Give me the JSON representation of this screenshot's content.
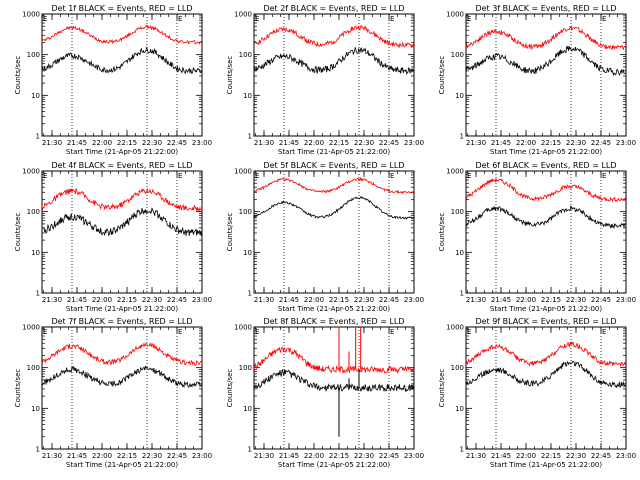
{
  "chart_data": [
    {
      "type": "line",
      "title": "Det 1f BLACK = Events, RED = LLD",
      "xlabel": "Start Time (21-Apr-05 21:22:00)",
      "ylabel": "Counts/sec",
      "x_ticks": [
        "21:30",
        "21:45",
        "22:00",
        "22:15",
        "22:30",
        "22:45",
        "23:00"
      ],
      "y_ticks": [
        "1",
        "10",
        "100",
        "1000"
      ],
      "ylim": [
        1,
        1000
      ],
      "yscale": "log",
      "xlim_minutes": [
        21.37,
        23.0
      ],
      "markers": {
        "E_start": "21:24",
        "E_end": "22:45",
        "dotted_lines": [
          "21:42",
          "22:27",
          "22:45"
        ]
      },
      "series": [
        {
          "name": "RED",
          "color": "#ff0000",
          "base": 200,
          "peaks": [
            {
              "t": "21:42",
              "v": 460
            },
            {
              "t": "22:27",
              "v": 480
            }
          ],
          "noise": 0.04,
          "x": [
            "21:24",
            "21:42",
            "22:05",
            "22:27",
            "22:45",
            "23:00"
          ],
          "values": [
            170,
            460,
            200,
            480,
            200,
            200
          ]
        },
        {
          "name": "BLACK",
          "color": "#000000",
          "base": 40,
          "peaks": [
            {
              "t": "21:42",
              "v": 95
            },
            {
              "t": "22:27",
              "v": 130
            }
          ],
          "noise": 0.07,
          "x": [
            "21:24",
            "21:42",
            "22:05",
            "22:27",
            "22:45",
            "23:00"
          ],
          "values": [
            38,
            95,
            40,
            130,
            38,
            37
          ]
        }
      ]
    },
    {
      "type": "line",
      "title": "Det 2f BLACK = Events, RED = LLD",
      "xlabel": "Start Time (21-Apr-05 21:22:00)",
      "ylabel": "Counts/sec",
      "x_ticks": [
        "21:30",
        "21:45",
        "22:00",
        "22:15",
        "22:30",
        "22:45",
        "23:00"
      ],
      "y_ticks": [
        "1",
        "10",
        "100",
        "1000"
      ],
      "ylim": [
        1,
        1000
      ],
      "yscale": "log",
      "markers": {
        "E_start": "21:24",
        "E_end": "22:45",
        "dotted_lines": [
          "21:42",
          "22:27",
          "22:45"
        ]
      },
      "series": [
        {
          "name": "RED",
          "color": "#ff0000",
          "base": 170,
          "peaks": [
            {
              "t": "21:42",
              "v": 420
            },
            {
              "t": "22:27",
              "v": 470
            }
          ],
          "noise": 0.06,
          "x": [
            "21:24",
            "21:42",
            "22:05",
            "22:27",
            "22:45",
            "23:00"
          ],
          "values": [
            170,
            420,
            190,
            470,
            160,
            160
          ]
        },
        {
          "name": "BLACK",
          "color": "#000000",
          "base": 40,
          "peaks": [
            {
              "t": "21:42",
              "v": 90
            },
            {
              "t": "22:27",
              "v": 130
            }
          ],
          "noise": 0.08,
          "x": [
            "21:24",
            "21:42",
            "22:05",
            "22:27",
            "22:45",
            "23:00"
          ],
          "values": [
            40,
            90,
            42,
            130,
            40,
            40
          ]
        }
      ]
    },
    {
      "type": "line",
      "title": "Det 3f BLACK = Events, RED = LLD",
      "xlabel": "Start Time (21-Apr-05 21:22:00)",
      "ylabel": "Counts/sec",
      "x_ticks": [
        "21:30",
        "21:45",
        "22:00",
        "22:15",
        "22:30",
        "22:45",
        "23:00"
      ],
      "y_ticks": [
        "1",
        "10",
        "100",
        "1000"
      ],
      "ylim": [
        1,
        1000
      ],
      "yscale": "log",
      "markers": {
        "E_start": "21:24",
        "E_end": "22:45",
        "dotted_lines": [
          "21:42",
          "22:27",
          "22:45"
        ]
      },
      "series": [
        {
          "name": "RED",
          "color": "#ff0000",
          "base": 150,
          "peaks": [
            {
              "t": "21:42",
              "v": 370
            },
            {
              "t": "22:27",
              "v": 450
            }
          ],
          "noise": 0.06,
          "x": [
            "21:24",
            "21:42",
            "22:05",
            "22:27",
            "22:45",
            "23:00"
          ],
          "values": [
            150,
            370,
            170,
            450,
            140,
            140
          ]
        },
        {
          "name": "BLACK",
          "color": "#000000",
          "base": 38,
          "peaks": [
            {
              "t": "21:42",
              "v": 90
            },
            {
              "t": "22:27",
              "v": 140
            }
          ],
          "noise": 0.08,
          "x": [
            "21:24",
            "21:42",
            "22:05",
            "22:27",
            "22:45",
            "23:00"
          ],
          "values": [
            36,
            90,
            38,
            140,
            38,
            36
          ]
        }
      ]
    },
    {
      "type": "line",
      "title": "Det 4f BLACK = Events, RED = LLD",
      "xlabel": "Start Time (21-Apr-05 21:22:00)",
      "ylabel": "Counts/sec",
      "x_ticks": [
        "21:30",
        "21:45",
        "22:00",
        "22:15",
        "22:30",
        "22:45",
        "23:00"
      ],
      "y_ticks": [
        "1",
        "10",
        "100",
        "1000"
      ],
      "ylim": [
        1,
        1000
      ],
      "yscale": "log",
      "markers": {
        "E_start": "21:24",
        "E_end": "22:45",
        "dotted_lines": [
          "21:42",
          "22:27",
          "22:45"
        ]
      },
      "series": [
        {
          "name": "RED",
          "color": "#ff0000",
          "base": 120,
          "peaks": [
            {
              "t": "21:42",
              "v": 320
            },
            {
              "t": "22:27",
              "v": 330
            }
          ],
          "noise": 0.07,
          "x": [
            "21:24",
            "21:42",
            "22:05",
            "22:27",
            "22:45",
            "23:00"
          ],
          "values": [
            110,
            320,
            130,
            330,
            120,
            120
          ]
        },
        {
          "name": "BLACK",
          "color": "#000000",
          "base": 30,
          "peaks": [
            {
              "t": "21:42",
              "v": 75
            },
            {
              "t": "22:27",
              "v": 110
            }
          ],
          "noise": 0.09,
          "x": [
            "21:24",
            "21:42",
            "22:05",
            "22:27",
            "22:45",
            "23:00"
          ],
          "values": [
            30,
            75,
            30,
            110,
            32,
            30
          ]
        }
      ]
    },
    {
      "type": "line",
      "title": "Det 5f BLACK = Events, RED = LLD",
      "xlabel": "Start Time (21-Apr-05 21:22:00)",
      "ylabel": "Counts/sec",
      "x_ticks": [
        "21:30",
        "21:45",
        "22:00",
        "22:15",
        "22:30",
        "22:45",
        "23:00"
      ],
      "y_ticks": [
        "1",
        "10",
        "100",
        "1000"
      ],
      "ylim": [
        1,
        1000
      ],
      "yscale": "log",
      "markers": {
        "E_start": "21:24",
        "E_end": "22:45",
        "dotted_lines": [
          "21:42",
          "22:27",
          "22:45"
        ]
      },
      "series": [
        {
          "name": "RED",
          "color": "#ff0000",
          "base": 300,
          "peaks": [
            {
              "t": "21:42",
              "v": 620
            },
            {
              "t": "22:27",
              "v": 630
            }
          ],
          "noise": 0.03,
          "x": [
            "21:24",
            "21:42",
            "22:05",
            "22:27",
            "22:45",
            "23:00"
          ],
          "values": [
            300,
            620,
            310,
            630,
            300,
            300
          ]
        },
        {
          "name": "BLACK",
          "color": "#000000",
          "base": 70,
          "peaks": [
            {
              "t": "21:42",
              "v": 170
            },
            {
              "t": "22:27",
              "v": 220
            }
          ],
          "noise": 0.03,
          "x": [
            "21:24",
            "21:42",
            "22:05",
            "22:27",
            "22:45",
            "23:00"
          ],
          "values": [
            70,
            170,
            75,
            220,
            70,
            70
          ]
        }
      ]
    },
    {
      "type": "line",
      "title": "Det 6f BLACK = Events, RED = LLD",
      "xlabel": "Start Time (21-Apr-05 21:22:00)",
      "ylabel": "Counts/sec",
      "x_ticks": [
        "21:30",
        "21:45",
        "22:00",
        "22:15",
        "22:30",
        "22:45",
        "23:00"
      ],
      "y_ticks": [
        "1",
        "10",
        "100",
        "1000"
      ],
      "ylim": [
        1,
        1000
      ],
      "yscale": "log",
      "markers": {
        "E_start": "21:24",
        "E_end": "22:45",
        "dotted_lines": [
          "21:42",
          "22:27",
          "22:45"
        ]
      },
      "series": [
        {
          "name": "RED",
          "color": "#ff0000",
          "base": 200,
          "peaks": [
            {
              "t": "21:42",
              "v": 600
            },
            {
              "t": "22:27",
              "v": 420
            }
          ],
          "noise": 0.05,
          "x": [
            "21:24",
            "21:42",
            "22:05",
            "22:27",
            "22:45",
            "23:00"
          ],
          "values": [
            200,
            600,
            230,
            420,
            200,
            200
          ]
        },
        {
          "name": "BLACK",
          "color": "#000000",
          "base": 45,
          "peaks": [
            {
              "t": "21:42",
              "v": 120
            },
            {
              "t": "22:27",
              "v": 120
            }
          ],
          "noise": 0.06,
          "x": [
            "21:24",
            "21:42",
            "22:05",
            "22:27",
            "22:45",
            "23:00"
          ],
          "values": [
            45,
            120,
            50,
            120,
            42,
            40
          ]
        }
      ]
    },
    {
      "type": "line",
      "title": "Det 7f BLACK = Events, RED = LLD",
      "xlabel": "Start Time (21-Apr-05 21:22:00)",
      "ylabel": "Counts/sec",
      "x_ticks": [
        "21:30",
        "21:45",
        "22:00",
        "22:15",
        "22:30",
        "22:45",
        "23:00"
      ],
      "y_ticks": [
        "1",
        "10",
        "100",
        "1000"
      ],
      "ylim": [
        1,
        1000
      ],
      "yscale": "log",
      "markers": {
        "E_start": "21:24",
        "E_end": "22:45",
        "dotted_lines": [
          "21:42",
          "22:27",
          "22:45"
        ]
      },
      "series": [
        {
          "name": "RED",
          "color": "#ff0000",
          "base": 130,
          "peaks": [
            {
              "t": "21:42",
              "v": 340
            },
            {
              "t": "22:27",
              "v": 360
            }
          ],
          "noise": 0.06,
          "x": [
            "21:24",
            "21:42",
            "22:05",
            "22:27",
            "22:45",
            "23:00"
          ],
          "values": [
            130,
            340,
            140,
            360,
            130,
            130
          ]
        },
        {
          "name": "BLACK",
          "color": "#000000",
          "base": 38,
          "peaks": [
            {
              "t": "21:42",
              "v": 90
            },
            {
              "t": "22:27",
              "v": 95
            }
          ],
          "noise": 0.07,
          "x": [
            "21:24",
            "21:42",
            "22:05",
            "22:27",
            "22:45",
            "23:00"
          ],
          "values": [
            38,
            90,
            40,
            95,
            38,
            36
          ]
        }
      ]
    },
    {
      "type": "line",
      "title": "Det 8f BLACK = Events, RED = LLD",
      "xlabel": "Start Time (21-Apr-05 21:22:00)",
      "ylabel": "Counts/sec",
      "x_ticks": [
        "21:30",
        "21:45",
        "22:00",
        "22:15",
        "22:30",
        "22:45",
        "23:00"
      ],
      "y_ticks": [
        "1",
        "10",
        "100",
        "1000"
      ],
      "ylim": [
        1,
        1000
      ],
      "yscale": "log",
      "markers": {
        "E_start": "21:24",
        "E_end": "22:45",
        "dotted_lines": [
          "21:42",
          "22:27",
          "22:45"
        ]
      },
      "series": [
        {
          "name": "RED",
          "color": "#ff0000",
          "base": 90,
          "peaks": [
            {
              "t": "21:42",
              "v": 290
            }
          ],
          "noise": 0.08,
          "spikes": [
            {
              "t": "22:15",
              "v": 1000
            },
            {
              "t": "22:21",
              "v": 250
            },
            {
              "t": "22:25",
              "v": 1000
            },
            {
              "t": "22:28",
              "v": 1000
            }
          ],
          "x": [
            "21:24",
            "21:42",
            "22:05",
            "22:15",
            "22:25",
            "22:45",
            "23:00"
          ],
          "values": [
            90,
            290,
            110,
            1000,
            1000,
            90,
            85
          ]
        },
        {
          "name": "BLACK",
          "color": "#000000",
          "base": 32,
          "peaks": [
            {
              "t": "21:42",
              "v": 75
            }
          ],
          "noise": 0.09,
          "spikes": [
            {
              "t": "22:15",
              "v": 2
            },
            {
              "t": "22:21",
              "v": 55
            },
            {
              "t": "22:27",
              "v": 90
            }
          ],
          "x": [
            "21:24",
            "21:42",
            "22:05",
            "22:15",
            "22:27",
            "22:45",
            "23:00"
          ],
          "values": [
            32,
            75,
            34,
            2,
            90,
            32,
            30
          ]
        }
      ]
    },
    {
      "type": "line",
      "title": "Det 9f BLACK = Events, RED = LLD",
      "xlabel": "Start Time (21-Apr-05 21:22:00)",
      "ylabel": "Counts/sec",
      "x_ticks": [
        "21:30",
        "21:45",
        "22:00",
        "22:15",
        "22:30",
        "22:45",
        "23:00"
      ],
      "y_ticks": [
        "1",
        "10",
        "100",
        "1000"
      ],
      "ylim": [
        1,
        1000
      ],
      "yscale": "log",
      "markers": {
        "E_start": "21:24",
        "E_end": "22:45",
        "dotted_lines": [
          "21:42",
          "22:27",
          "22:45"
        ]
      },
      "series": [
        {
          "name": "RED",
          "color": "#ff0000",
          "base": 120,
          "peaks": [
            {
              "t": "21:42",
              "v": 330
            },
            {
              "t": "22:27",
              "v": 380
            }
          ],
          "noise": 0.06,
          "x": [
            "21:24",
            "21:42",
            "22:05",
            "22:27",
            "22:45",
            "23:00"
          ],
          "values": [
            120,
            330,
            130,
            380,
            120,
            120
          ]
        },
        {
          "name": "BLACK",
          "color": "#000000",
          "base": 38,
          "peaks": [
            {
              "t": "21:42",
              "v": 90
            },
            {
              "t": "22:27",
              "v": 130
            }
          ],
          "noise": 0.07,
          "x": [
            "21:24",
            "21:42",
            "22:05",
            "22:27",
            "22:45",
            "23:00"
          ],
          "values": [
            38,
            90,
            40,
            130,
            38,
            36
          ]
        }
      ]
    }
  ]
}
